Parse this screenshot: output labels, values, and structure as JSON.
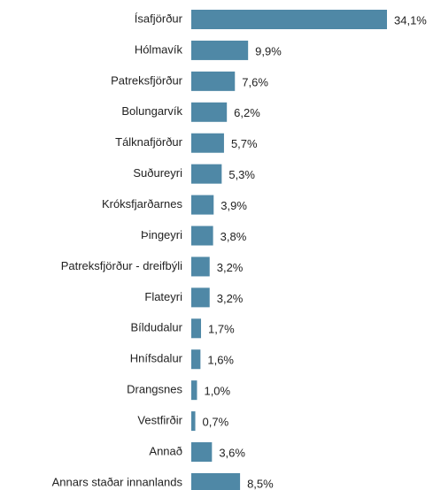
{
  "chart_data": {
    "type": "barh",
    "color": "#4f88a6",
    "categories": [
      "Ísafjörður",
      "Hólmavík",
      "Patreksfjörður",
      "Bolungarvík",
      "Tálknafjörður",
      "Suðureyri",
      "Króksfjarðarnes",
      "Þingeyri",
      "Patreksfjörður - dreifbýli",
      "Flateyri",
      "Bíldudalur",
      "Hnífsdalur",
      "Drangsnes",
      "Vestfirðir",
      "Annað",
      "Annars staðar innanlands"
    ],
    "values": [
      34.1,
      9.9,
      7.6,
      6.2,
      5.7,
      5.3,
      3.9,
      3.8,
      3.2,
      3.2,
      1.7,
      1.6,
      1.0,
      0.7,
      3.6,
      8.5
    ],
    "value_labels": [
      "34,1%",
      "9,9%",
      "7,6%",
      "6,2%",
      "5,7%",
      "5,3%",
      "3,9%",
      "3,8%",
      "3,2%",
      "3,2%",
      "1,7%",
      "1,6%",
      "1,0%",
      "0,7%",
      "3,6%",
      "8,5%"
    ]
  }
}
